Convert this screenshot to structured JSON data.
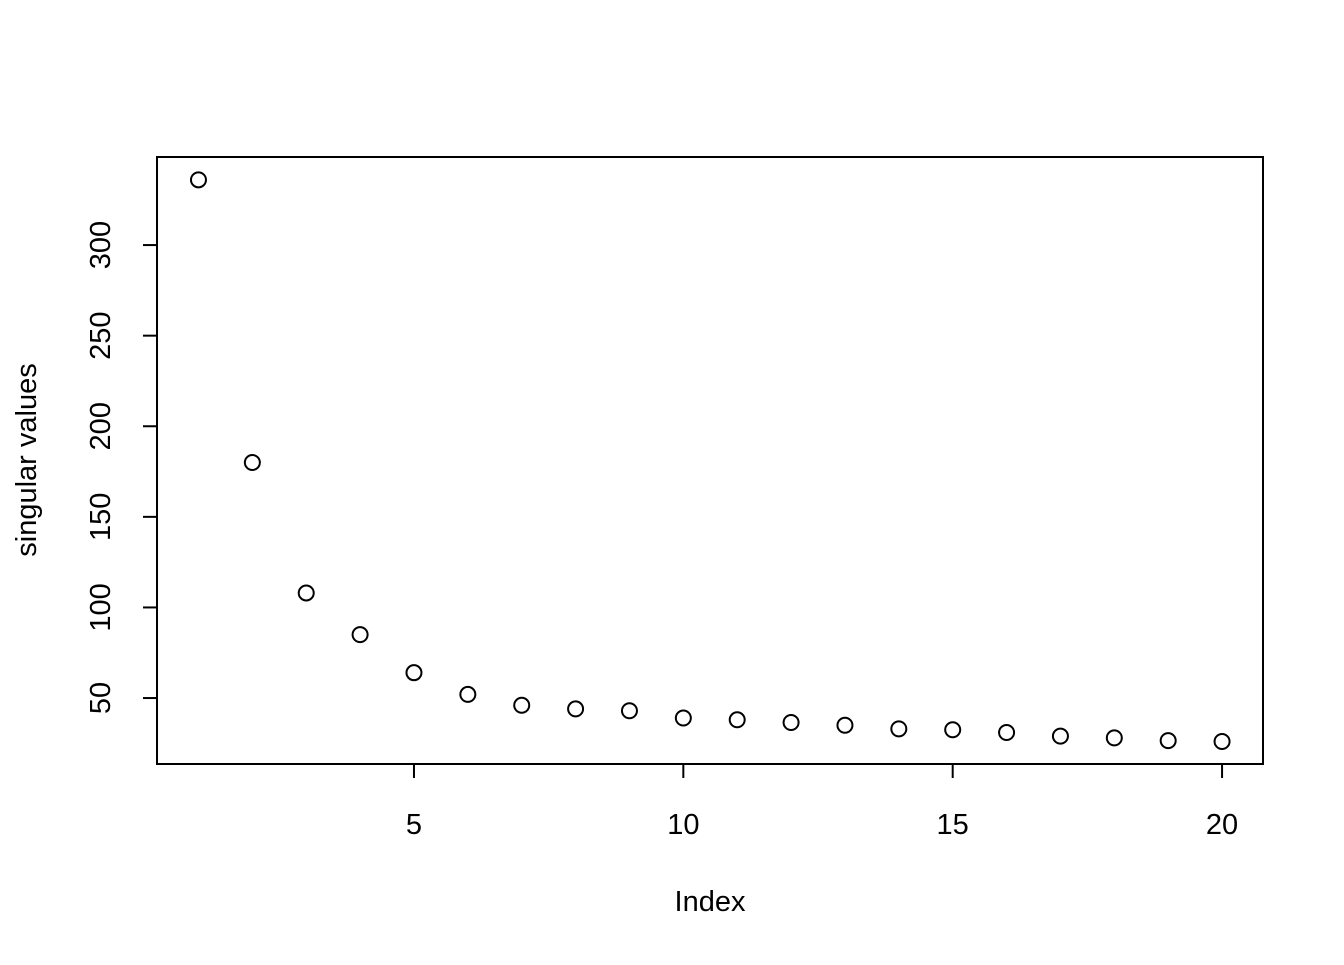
{
  "chart_data": {
    "type": "scatter",
    "x_label": "Index",
    "y_label": "singular values",
    "x": [
      1,
      2,
      3,
      4,
      5,
      6,
      7,
      8,
      9,
      10,
      11,
      12,
      13,
      14,
      15,
      16,
      17,
      18,
      19,
      20
    ],
    "series": [
      {
        "color": "#000000",
        "values": [
          336,
          180,
          108,
          85,
          64,
          52,
          46,
          44,
          43,
          39,
          38,
          36.5,
          35,
          33,
          32.5,
          31,
          29,
          28,
          26.5,
          26
        ]
      }
    ],
    "xlim": [
      0.23,
      20.76
    ],
    "ylim": [
      13.6,
      348.6
    ],
    "xticks": [
      5,
      10,
      15,
      20
    ],
    "yticks": [
      50,
      100,
      150,
      200,
      250,
      300
    ]
  }
}
